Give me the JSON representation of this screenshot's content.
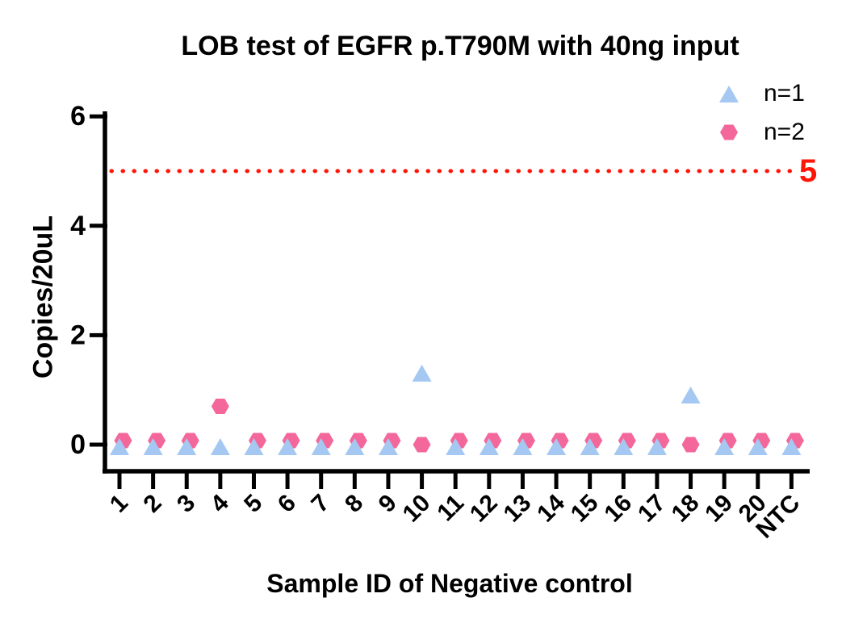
{
  "chart_data": {
    "type": "scatter",
    "title": "LOB test of EGFR p.T790M with 40ng input",
    "xlabel": "Sample ID of Negative control",
    "ylabel": "Copies/20uL",
    "categories": [
      "1",
      "2",
      "3",
      "4",
      "5",
      "6",
      "7",
      "8",
      "9",
      "10",
      "11",
      "12",
      "13",
      "14",
      "15",
      "16",
      "17",
      "18",
      "19",
      "20",
      "NTC"
    ],
    "ylim": [
      0,
      6
    ],
    "yticks": [
      0,
      2,
      4,
      6
    ],
    "grid": false,
    "legend_position": "top-right",
    "series": [
      {
        "name": "n=1",
        "marker": "triangle",
        "color": "#A5C8F2",
        "values": [
          0,
          0,
          0,
          0,
          0,
          0,
          0,
          0,
          0,
          1.3,
          0,
          0,
          0,
          0,
          0,
          0,
          0,
          0.9,
          0,
          0,
          0
        ]
      },
      {
        "name": "n=2",
        "marker": "hexagon",
        "color": "#F4679B",
        "values": [
          0,
          0,
          0,
          0.7,
          0,
          0,
          0,
          0,
          0,
          0,
          0,
          0,
          0,
          0,
          0,
          0,
          0,
          0,
          0,
          0,
          0
        ]
      }
    ],
    "threshold_line": {
      "value": 5,
      "label": "5",
      "color": "#FF1507",
      "style": "dotted"
    },
    "axis_color": "#000000",
    "background_color": "#FFFFFF"
  }
}
